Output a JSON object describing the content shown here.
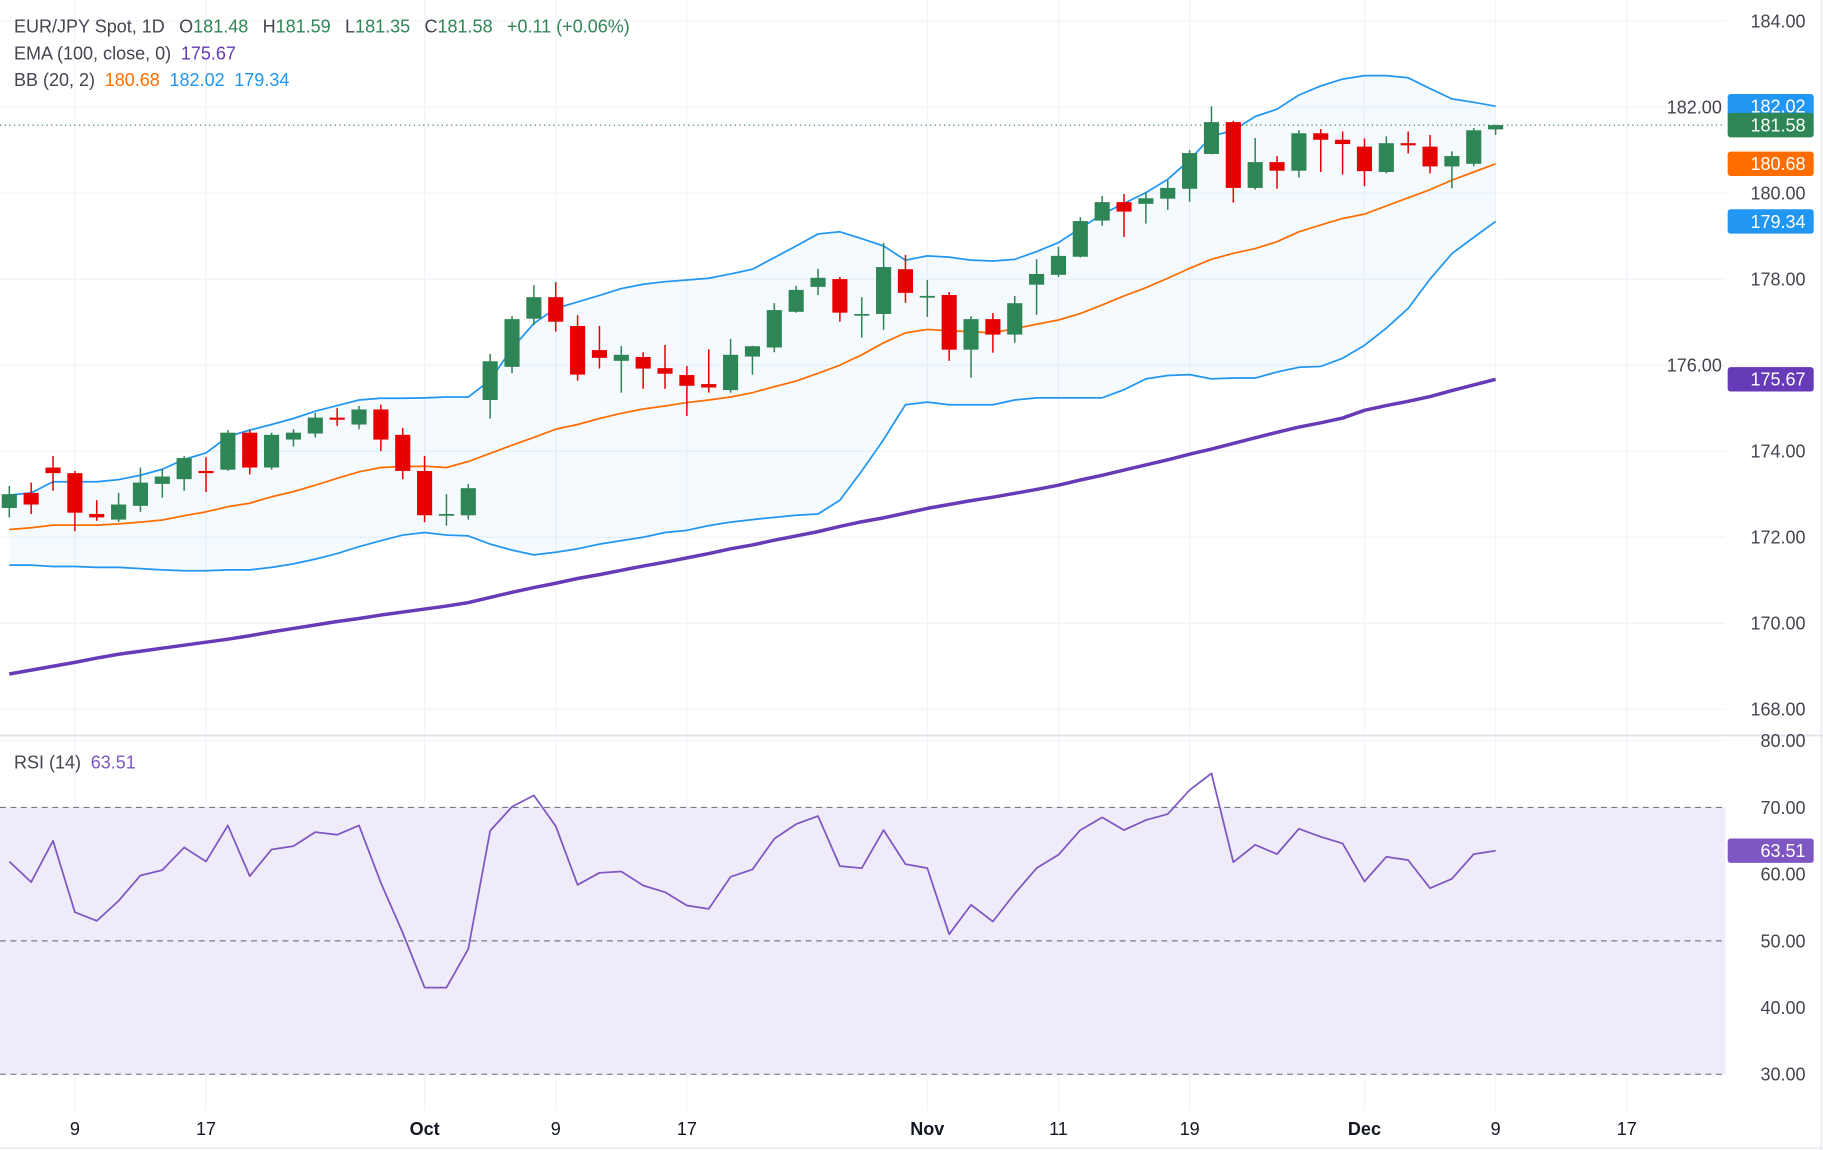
{
  "header": {
    "symbol": "EUR/JPY Spot, 1D",
    "open_label": "O",
    "open": "181.48",
    "high_label": "H",
    "high": "181.59",
    "low_label": "L",
    "low": "181.35",
    "close_label": "C",
    "close": "181.58",
    "change": "+0.11 (+0.06%)"
  },
  "ema_legend": {
    "label": "EMA (100, close, 0)",
    "value": "175.67"
  },
  "bb_legend": {
    "label": "BB (20, 2)",
    "basis": "180.68",
    "upper": "182.02",
    "lower": "179.34"
  },
  "rsi_legend": {
    "label": "RSI (14)",
    "value": "63.51"
  },
  "colors": {
    "up": "#2e8555",
    "down": "#e60000",
    "bb_band": "#2196f3",
    "bb_basis": "#ff6d00",
    "ema": "#673ab7",
    "rsi": "#7e57c2",
    "rsi_fill": "#efebf8",
    "text": "#434651",
    "grid": "#f0f3fa"
  },
  "chart_data": {
    "type": "candlestick",
    "price_axis": {
      "range": [
        167.5,
        184.4
      ],
      "ticks": [
        "184.00",
        "182.00",
        "180.00",
        "178.00",
        "176.00",
        "174.00",
        "172.00",
        "170.00",
        "168.00"
      ],
      "position": "right",
      "grid": true
    },
    "time_axis": {
      "ticks": [
        {
          "label": "9",
          "index": 3,
          "month": false
        },
        {
          "label": "17",
          "index": 9,
          "month": false
        },
        {
          "label": "Oct",
          "index": 19,
          "month": true
        },
        {
          "label": "9",
          "index": 25,
          "month": false
        },
        {
          "label": "17",
          "index": 31,
          "month": false
        },
        {
          "label": "Nov",
          "index": 42,
          "month": true
        },
        {
          "label": "11",
          "index": 48,
          "month": false
        },
        {
          "label": "19",
          "index": 54,
          "month": false
        },
        {
          "label": "Dec",
          "index": 62,
          "month": true
        },
        {
          "label": "9",
          "index": 68,
          "month": false
        },
        {
          "label": "17",
          "index": 74,
          "month": false
        }
      ]
    },
    "ohlc_fields": [
      "open",
      "high",
      "low",
      "close"
    ],
    "candles": [
      [
        172.68,
        173.19,
        172.46,
        173.0
      ],
      [
        173.03,
        173.27,
        172.54,
        172.76
      ],
      [
        173.62,
        173.89,
        173.08,
        173.49
      ],
      [
        173.49,
        173.54,
        172.14,
        172.57
      ],
      [
        172.54,
        172.86,
        172.38,
        172.46
      ],
      [
        172.41,
        173.03,
        172.35,
        172.76
      ],
      [
        172.73,
        173.62,
        172.59,
        173.27
      ],
      [
        173.24,
        173.59,
        172.92,
        173.41
      ],
      [
        173.35,
        173.89,
        173.08,
        173.84
      ],
      [
        173.54,
        173.86,
        173.05,
        173.49
      ],
      [
        173.57,
        174.49,
        173.54,
        174.43
      ],
      [
        174.43,
        174.49,
        173.46,
        173.62
      ],
      [
        173.62,
        174.43,
        173.57,
        174.38
      ],
      [
        174.27,
        174.51,
        174.11,
        174.43
      ],
      [
        174.41,
        174.89,
        174.32,
        174.78
      ],
      [
        174.78,
        175.0,
        174.59,
        174.73
      ],
      [
        174.62,
        175.05,
        174.51,
        174.97
      ],
      [
        174.97,
        175.08,
        174.0,
        174.27
      ],
      [
        174.38,
        174.54,
        173.35,
        173.54
      ],
      [
        173.54,
        173.89,
        172.35,
        172.51
      ],
      [
        172.51,
        173.0,
        172.27,
        172.54
      ],
      [
        172.51,
        173.24,
        172.41,
        173.14
      ],
      [
        175.19,
        176.26,
        174.76,
        176.09
      ],
      [
        175.96,
        177.14,
        175.81,
        177.07
      ],
      [
        177.08,
        177.86,
        176.93,
        177.58
      ],
      [
        177.58,
        177.93,
        176.78,
        177.01
      ],
      [
        176.91,
        177.16,
        175.64,
        175.78
      ],
      [
        176.35,
        176.91,
        175.92,
        176.17
      ],
      [
        176.1,
        176.44,
        175.36,
        176.24
      ],
      [
        176.19,
        176.3,
        175.45,
        175.92
      ],
      [
        175.93,
        176.47,
        175.45,
        175.8
      ],
      [
        175.77,
        175.98,
        174.82,
        175.52
      ],
      [
        175.56,
        176.37,
        175.36,
        175.48
      ],
      [
        175.42,
        176.61,
        175.36,
        176.24
      ],
      [
        176.2,
        176.45,
        175.78,
        176.44
      ],
      [
        176.41,
        177.44,
        176.3,
        177.28
      ],
      [
        177.24,
        177.84,
        177.22,
        177.75
      ],
      [
        177.82,
        178.24,
        177.63,
        178.03
      ],
      [
        178.0,
        178.05,
        177.01,
        177.22
      ],
      [
        177.18,
        177.58,
        176.64,
        177.19
      ],
      [
        177.19,
        178.84,
        176.82,
        178.28
      ],
      [
        178.23,
        178.56,
        177.45,
        177.68
      ],
      [
        177.58,
        177.98,
        177.12,
        177.61
      ],
      [
        177.63,
        177.7,
        176.1,
        176.36
      ],
      [
        176.36,
        177.14,
        175.71,
        177.07
      ],
      [
        177.07,
        177.21,
        176.29,
        176.71
      ],
      [
        176.71,
        177.61,
        176.52,
        177.44
      ],
      [
        177.87,
        178.46,
        177.17,
        178.12
      ],
      [
        178.1,
        178.75,
        178.05,
        178.54
      ],
      [
        178.52,
        179.44,
        178.5,
        179.35
      ],
      [
        179.36,
        179.93,
        179.24,
        179.79
      ],
      [
        179.79,
        179.98,
        178.98,
        179.57
      ],
      [
        179.75,
        180.02,
        179.29,
        179.88
      ],
      [
        179.87,
        180.3,
        179.61,
        180.12
      ],
      [
        180.1,
        181.0,
        179.8,
        180.93
      ],
      [
        180.91,
        182.02,
        180.9,
        181.65
      ],
      [
        181.65,
        181.68,
        179.78,
        180.12
      ],
      [
        180.12,
        181.28,
        180.08,
        180.72
      ],
      [
        180.72,
        180.86,
        180.1,
        180.52
      ],
      [
        180.52,
        181.46,
        180.36,
        181.39
      ],
      [
        181.39,
        181.49,
        180.49,
        181.24
      ],
      [
        181.24,
        181.43,
        180.43,
        181.14
      ],
      [
        181.08,
        181.27,
        180.16,
        180.51
      ],
      [
        180.49,
        181.32,
        180.46,
        181.16
      ],
      [
        181.16,
        181.43,
        180.92,
        181.11
      ],
      [
        181.08,
        181.35,
        180.46,
        180.62
      ],
      [
        180.62,
        180.97,
        180.11,
        180.86
      ],
      [
        180.68,
        181.51,
        180.62,
        181.46
      ],
      [
        181.48,
        181.59,
        181.35,
        181.58
      ]
    ],
    "bb_upper": [
      172.98,
      173.03,
      173.29,
      173.29,
      173.29,
      173.34,
      173.44,
      173.58,
      173.81,
      173.96,
      174.34,
      174.49,
      174.62,
      174.76,
      174.93,
      175.06,
      175.19,
      175.23,
      175.23,
      175.24,
      175.26,
      175.26,
      175.65,
      176.39,
      176.97,
      177.32,
      177.47,
      177.62,
      177.78,
      177.88,
      177.94,
      177.98,
      178.02,
      178.12,
      178.23,
      178.5,
      178.77,
      179.05,
      179.1,
      178.94,
      178.77,
      178.44,
      178.54,
      178.51,
      178.44,
      178.42,
      178.46,
      178.64,
      178.85,
      179.18,
      179.51,
      179.76,
      180.01,
      180.32,
      180.77,
      181.32,
      181.46,
      181.78,
      181.95,
      182.28,
      182.49,
      182.65,
      182.73,
      182.73,
      182.68,
      182.43,
      182.19,
      182.11,
      182.02
    ],
    "bb_basis": [
      172.18,
      172.22,
      172.28,
      172.28,
      172.28,
      172.31,
      172.35,
      172.4,
      172.5,
      172.59,
      172.71,
      172.79,
      172.94,
      173.06,
      173.21,
      173.37,
      173.52,
      173.62,
      173.64,
      173.65,
      173.62,
      173.76,
      173.95,
      174.14,
      174.32,
      174.51,
      174.62,
      174.76,
      174.88,
      174.98,
      175.05,
      175.13,
      175.19,
      175.26,
      175.36,
      175.5,
      175.63,
      175.81,
      176.0,
      176.24,
      176.52,
      176.75,
      176.83,
      176.8,
      176.78,
      176.75,
      176.85,
      176.95,
      177.05,
      177.2,
      177.4,
      177.61,
      177.8,
      178.02,
      178.25,
      178.46,
      178.6,
      178.71,
      178.87,
      179.1,
      179.26,
      179.41,
      179.51,
      179.7,
      179.89,
      180.08,
      180.3,
      180.49,
      180.68
    ],
    "bb_lower": [
      171.35,
      171.35,
      171.32,
      171.32,
      171.3,
      171.3,
      171.27,
      171.24,
      171.22,
      171.22,
      171.24,
      171.24,
      171.3,
      171.38,
      171.49,
      171.62,
      171.78,
      171.92,
      172.05,
      172.11,
      172.05,
      172.03,
      171.84,
      171.7,
      171.59,
      171.65,
      171.73,
      171.84,
      171.92,
      172.0,
      172.11,
      172.16,
      172.27,
      172.35,
      172.41,
      172.46,
      172.51,
      172.54,
      172.86,
      173.54,
      174.27,
      175.08,
      175.14,
      175.08,
      175.08,
      175.08,
      175.19,
      175.24,
      175.24,
      175.24,
      175.24,
      175.43,
      175.68,
      175.76,
      175.78,
      175.68,
      175.7,
      175.7,
      175.84,
      175.95,
      175.97,
      176.16,
      176.46,
      176.86,
      177.32,
      178.0,
      178.59,
      178.97,
      179.34
    ],
    "ema100": [
      168.82,
      168.91,
      169.0,
      169.09,
      169.19,
      169.28,
      169.35,
      169.42,
      169.49,
      169.56,
      169.63,
      169.71,
      169.8,
      169.88,
      169.96,
      170.04,
      170.11,
      170.19,
      170.26,
      170.33,
      170.4,
      170.48,
      170.6,
      170.72,
      170.83,
      170.93,
      171.04,
      171.13,
      171.23,
      171.33,
      171.42,
      171.52,
      171.62,
      171.73,
      171.82,
      171.93,
      172.03,
      172.13,
      172.25,
      172.36,
      172.45,
      172.56,
      172.67,
      172.76,
      172.85,
      172.93,
      173.02,
      173.11,
      173.21,
      173.33,
      173.44,
      173.56,
      173.68,
      173.8,
      173.93,
      174.05,
      174.18,
      174.31,
      174.44,
      174.56,
      174.66,
      174.77,
      174.95,
      175.06,
      175.16,
      175.27,
      175.41,
      175.54,
      175.67
    ],
    "price_tags": [
      {
        "value": 182.02,
        "text": "182.02",
        "color": "#2196f3"
      },
      {
        "value": 181.58,
        "text": "181.58",
        "color": "#2e8555"
      },
      {
        "value": 180.68,
        "text": "180.68",
        "color": "#ff6d00"
      },
      {
        "value": 179.34,
        "text": "179.34",
        "color": "#2196f3"
      },
      {
        "value": 175.67,
        "text": "175.67",
        "color": "#673ab7"
      }
    ],
    "last_close": 181.58,
    "rsi": {
      "range": [
        30,
        80
      ],
      "ticks": [
        "80.00",
        "70.00",
        "60.00",
        "50.00",
        "40.00",
        "30.00"
      ],
      "levels": [
        70,
        50,
        30
      ],
      "band": [
        30,
        70
      ],
      "values": [
        61.9,
        58.8,
        65.0,
        54.3,
        53.0,
        56.0,
        59.8,
        60.6,
        64.0,
        61.9,
        67.3,
        59.7,
        63.7,
        64.2,
        66.3,
        65.9,
        67.3,
        58.7,
        51.2,
        43.0,
        43.0,
        48.8,
        66.5,
        70.1,
        71.8,
        67.2,
        58.4,
        60.2,
        60.4,
        58.3,
        57.3,
        55.3,
        54.8,
        59.6,
        60.7,
        65.3,
        67.5,
        68.7,
        61.2,
        60.9,
        66.6,
        61.5,
        60.9,
        51.0,
        55.4,
        52.9,
        57.1,
        60.9,
        62.9,
        66.6,
        68.5,
        66.6,
        68.1,
        69.0,
        72.6,
        75.1,
        61.8,
        64.4,
        63.0,
        66.8,
        65.6,
        64.6,
        58.9,
        62.6,
        62.1,
        57.9,
        59.3,
        63.0,
        63.51
      ],
      "tag": {
        "value": 63.51,
        "text": "63.51",
        "color": "#7e57c2"
      }
    }
  }
}
